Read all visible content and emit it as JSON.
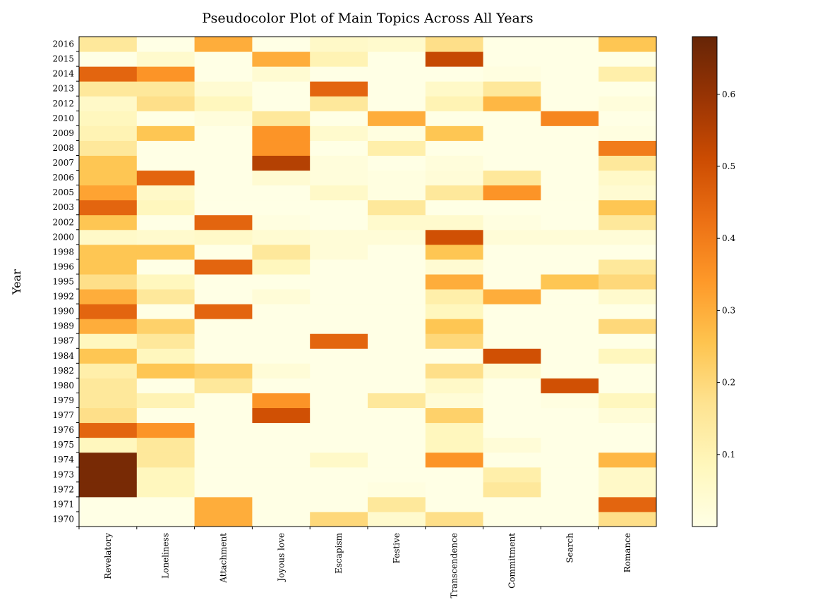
{
  "chart_data": {
    "type": "heatmap",
    "title": "Pseudocolor Plot of Main Topics Across All Years",
    "xlabel": "",
    "ylabel": "Year",
    "colormap": "YlOrBr",
    "colorbar_range": [
      0.0,
      0.68
    ],
    "colorbar_ticks": [
      0.1,
      0.2,
      0.3,
      0.4,
      0.5,
      0.6
    ],
    "colorbar_tick_labels": [
      "0.1",
      "0.2",
      "0.3",
      "0.4",
      "0.5",
      "0.6"
    ],
    "categories": [
      "Revelatory",
      "Loneliness",
      "Attachment",
      "Joyous love",
      "Escapism",
      "Festive",
      "Transcendence",
      "Commitment",
      "Search",
      "Romance"
    ],
    "years": [
      "1970",
      "1971",
      "1972",
      "1973",
      "1974",
      "1975",
      "1976",
      "1977",
      "1979",
      "1980",
      "1982",
      "1984",
      "1987",
      "1989",
      "1990",
      "1992",
      "1995",
      "1996",
      "1998",
      "2000",
      "2002",
      "2003",
      "2005",
      "2006",
      "2007",
      "2008",
      "2009",
      "2010",
      "2012",
      "2013",
      "2014",
      "2015",
      "2016"
    ],
    "values": [
      [
        0.0,
        0.0,
        0.3,
        0.0,
        0.2,
        0.05,
        0.18,
        0.0,
        0.0,
        0.18
      ],
      [
        0.0,
        0.0,
        0.3,
        0.0,
        0.0,
        0.15,
        0.0,
        0.0,
        0.0,
        0.45
      ],
      [
        0.65,
        0.08,
        0.0,
        0.0,
        0.0,
        0.01,
        0.0,
        0.15,
        0.0,
        0.06
      ],
      [
        0.65,
        0.08,
        0.0,
        0.0,
        0.0,
        0.0,
        0.0,
        0.12,
        0.0,
        0.06
      ],
      [
        0.65,
        0.15,
        0.0,
        0.0,
        0.06,
        0.0,
        0.35,
        0.0,
        0.0,
        0.28
      ],
      [
        0.08,
        0.15,
        0.0,
        0.0,
        0.0,
        0.0,
        0.08,
        0.03,
        0.0,
        0.0
      ],
      [
        0.45,
        0.35,
        0.0,
        0.0,
        0.0,
        0.0,
        0.08,
        0.0,
        0.0,
        0.0
      ],
      [
        0.18,
        0.0,
        0.0,
        0.5,
        0.0,
        0.0,
        0.22,
        0.0,
        0.0,
        0.03
      ],
      [
        0.15,
        0.1,
        0.0,
        0.35,
        0.0,
        0.15,
        0.03,
        0.0,
        0.01,
        0.08
      ],
      [
        0.15,
        0.0,
        0.15,
        0.0,
        0.0,
        0.0,
        0.06,
        0.0,
        0.5,
        0.0
      ],
      [
        0.12,
        0.25,
        0.22,
        0.03,
        0.0,
        0.0,
        0.18,
        0.04,
        0.0,
        0.0
      ],
      [
        0.25,
        0.08,
        0.0,
        0.0,
        0.0,
        0.0,
        0.0,
        0.5,
        0.0,
        0.08
      ],
      [
        0.08,
        0.15,
        0.0,
        0.0,
        0.45,
        0.0,
        0.2,
        0.0,
        0.0,
        0.0
      ],
      [
        0.3,
        0.22,
        0.0,
        0.0,
        0.0,
        0.0,
        0.25,
        0.0,
        0.0,
        0.2
      ],
      [
        0.45,
        0.0,
        0.45,
        0.0,
        0.0,
        0.0,
        0.08,
        0.0,
        0.0,
        0.0
      ],
      [
        0.3,
        0.15,
        0.0,
        0.03,
        0.0,
        0.0,
        0.12,
        0.3,
        0.0,
        0.05
      ],
      [
        0.18,
        0.08,
        0.0,
        0.0,
        0.0,
        0.0,
        0.3,
        0.0,
        0.25,
        0.2
      ],
      [
        0.25,
        0.0,
        0.45,
        0.08,
        0.0,
        0.0,
        0.04,
        0.0,
        0.0,
        0.15
      ],
      [
        0.25,
        0.25,
        0.0,
        0.15,
        0.03,
        0.0,
        0.25,
        0.0,
        0.0,
        0.0
      ],
      [
        0.06,
        0.05,
        0.06,
        0.04,
        0.03,
        0.03,
        0.5,
        0.03,
        0.03,
        0.03
      ],
      [
        0.25,
        0.0,
        0.45,
        0.01,
        0.0,
        0.05,
        0.05,
        0.01,
        0.0,
        0.15
      ],
      [
        0.45,
        0.08,
        0.0,
        0.0,
        0.0,
        0.15,
        0.0,
        0.0,
        0.0,
        0.25
      ],
      [
        0.32,
        0.06,
        0.0,
        0.0,
        0.06,
        0.01,
        0.15,
        0.35,
        0.0,
        0.04
      ],
      [
        0.25,
        0.45,
        0.0,
        0.04,
        0.02,
        0.01,
        0.03,
        0.15,
        0.0,
        0.06
      ],
      [
        0.25,
        0.0,
        0.0,
        0.55,
        0.02,
        0.0,
        0.02,
        0.0,
        0.0,
        0.15
      ],
      [
        0.15,
        0.0,
        0.0,
        0.35,
        0.0,
        0.12,
        0.0,
        0.0,
        0.0,
        0.4
      ],
      [
        0.1,
        0.25,
        0.0,
        0.35,
        0.05,
        0.01,
        0.25,
        0.0,
        0.0,
        0.01
      ],
      [
        0.08,
        0.0,
        0.02,
        0.15,
        0.0,
        0.3,
        0.0,
        0.0,
        0.38,
        0.0
      ],
      [
        0.06,
        0.18,
        0.08,
        0.0,
        0.15,
        0.0,
        0.1,
        0.28,
        0.0,
        0.02
      ],
      [
        0.15,
        0.15,
        0.04,
        0.0,
        0.45,
        0.0,
        0.06,
        0.15,
        0.0,
        0.0
      ],
      [
        0.45,
        0.35,
        0.0,
        0.04,
        0.0,
        0.0,
        0.0,
        0.01,
        0.0,
        0.12
      ],
      [
        0.0,
        0.05,
        0.0,
        0.3,
        0.1,
        0.0,
        0.52,
        0.0,
        0.0,
        0.0
      ],
      [
        0.15,
        0.0,
        0.3,
        0.0,
        0.06,
        0.05,
        0.18,
        0.0,
        0.0,
        0.25
      ]
    ]
  }
}
